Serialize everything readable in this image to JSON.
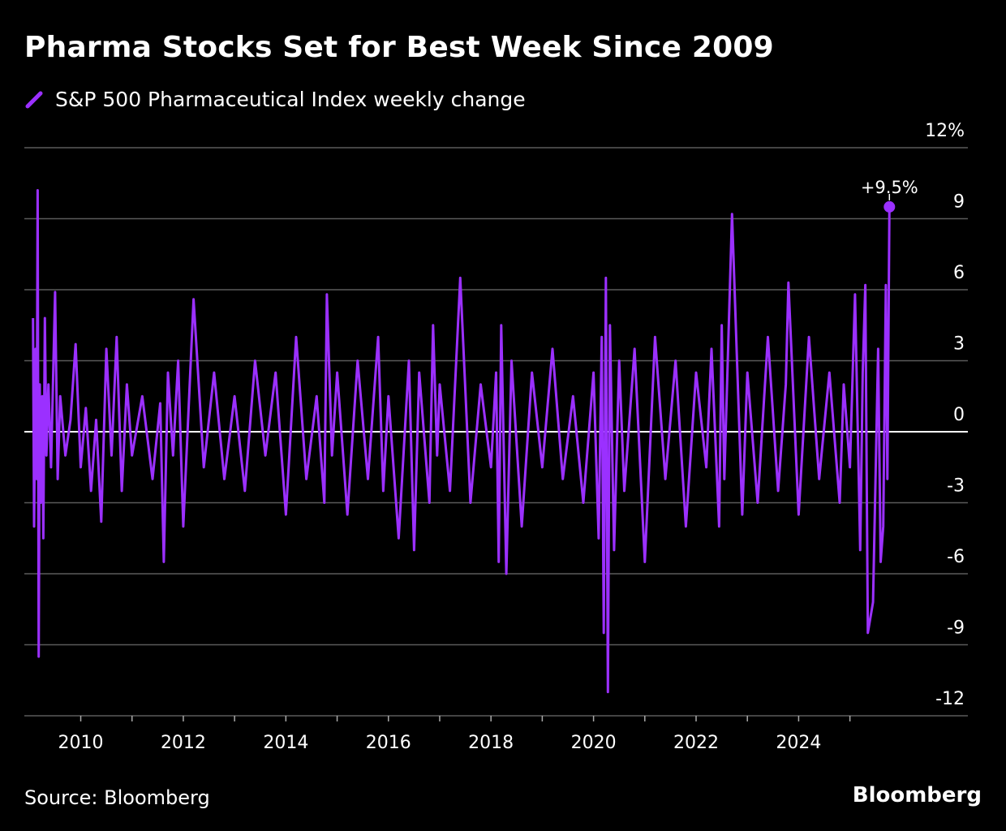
{
  "title": "Pharma Stocks Set for Best Week Since 2009",
  "legend_label": "S&P 500 Pharmaceutical Index weekly change",
  "source": "Source: Bloomberg",
  "brand": "Bloomberg",
  "colors": {
    "series": "#9B30FF",
    "grid": "#5a5a5a",
    "zero": "#ffffff",
    "background": "#000000"
  },
  "legend_icon": "purple-slash-icon",
  "chart_data": {
    "type": "line",
    "title": "Pharma Stocks Set for Best Week Since 2009",
    "xlabel": "",
    "ylabel": "",
    "xlim": [
      2008.9,
      2027.3
    ],
    "ylim": [
      -12,
      12
    ],
    "y_ticks": [
      {
        "value": 12,
        "label": "12%"
      },
      {
        "value": 9,
        "label": "9"
      },
      {
        "value": 6,
        "label": "6"
      },
      {
        "value": 3,
        "label": "3"
      },
      {
        "value": 0,
        "label": "0"
      },
      {
        "value": -3,
        "label": "-3"
      },
      {
        "value": -6,
        "label": "-6"
      },
      {
        "value": -9,
        "label": "-9"
      },
      {
        "value": -12,
        "label": "-12"
      }
    ],
    "x_ticks": [
      {
        "value": 2010,
        "label": "2010"
      },
      {
        "value": 2012,
        "label": "2012"
      },
      {
        "value": 2014,
        "label": "2014"
      },
      {
        "value": 2016,
        "label": "2016"
      },
      {
        "value": 2018,
        "label": "2018"
      },
      {
        "value": 2020,
        "label": "2020"
      },
      {
        "value": 2022,
        "label": "2022"
      },
      {
        "value": 2024,
        "label": "2024"
      }
    ],
    "minor_ticks": [
      2011,
      2013,
      2015,
      2017,
      2019,
      2021,
      2023,
      2025
    ],
    "y_axis_position": "right",
    "grid": true,
    "legend": "top-left",
    "series": [
      {
        "name": "S&P 500 Pharmaceutical Index weekly change",
        "x": [
          2009.07,
          2009.09,
          2009.12,
          2009.14,
          2009.16,
          2009.18,
          2009.2,
          2009.22,
          2009.25,
          2009.27,
          2009.3,
          2009.33,
          2009.37,
          2009.42,
          2009.5,
          2009.55,
          2009.6,
          2009.7,
          2009.8,
          2009.9,
          2010.0,
          2010.1,
          2010.2,
          2010.3,
          2010.4,
          2010.5,
          2010.6,
          2010.7,
          2010.8,
          2010.9,
          2011.0,
          2011.2,
          2011.4,
          2011.55,
          2011.62,
          2011.7,
          2011.8,
          2011.9,
          2012.0,
          2012.2,
          2012.4,
          2012.6,
          2012.8,
          2013.0,
          2013.2,
          2013.4,
          2013.6,
          2013.8,
          2014.0,
          2014.2,
          2014.4,
          2014.6,
          2014.75,
          2014.8,
          2014.9,
          2015.0,
          2015.2,
          2015.4,
          2015.6,
          2015.8,
          2015.9,
          2016.0,
          2016.2,
          2016.4,
          2016.5,
          2016.6,
          2016.8,
          2016.87,
          2016.95,
          2017.0,
          2017.2,
          2017.4,
          2017.6,
          2017.8,
          2018.0,
          2018.1,
          2018.15,
          2018.2,
          2018.3,
          2018.4,
          2018.6,
          2018.8,
          2019.0,
          2019.2,
          2019.4,
          2019.6,
          2019.8,
          2020.0,
          2020.1,
          2020.16,
          2020.2,
          2020.24,
          2020.28,
          2020.32,
          2020.4,
          2020.5,
          2020.6,
          2020.8,
          2021.0,
          2021.2,
          2021.4,
          2021.6,
          2021.8,
          2022.0,
          2022.2,
          2022.3,
          2022.45,
          2022.5,
          2022.55,
          2022.7,
          2022.9,
          2023.0,
          2023.2,
          2023.4,
          2023.6,
          2023.75,
          2023.8,
          2024.0,
          2024.2,
          2024.4,
          2024.6,
          2024.8,
          2024.88,
          2025.0,
          2025.1,
          2025.2,
          2025.25,
          2025.3,
          2025.35,
          2025.45,
          2025.55,
          2025.6,
          2025.65,
          2025.7,
          2025.73,
          2025.77
        ],
        "values": [
          4.8,
          -4.0,
          3.5,
          -2.0,
          10.2,
          -9.5,
          2.0,
          -3.0,
          1.5,
          -4.5,
          4.8,
          -1.0,
          2.0,
          -1.5,
          5.9,
          -2.0,
          1.5,
          -1.0,
          0.5,
          3.7,
          -1.5,
          1.0,
          -2.5,
          0.5,
          -3.8,
          3.5,
          -1.0,
          4.0,
          -2.5,
          2.0,
          -1.0,
          1.5,
          -2.0,
          1.2,
          -5.5,
          2.5,
          -1.0,
          3.0,
          -4.0,
          5.6,
          -1.5,
          2.5,
          -2.0,
          1.5,
          -2.5,
          3.0,
          -1.0,
          2.5,
          -3.5,
          4.0,
          -2.0,
          1.5,
          -3.0,
          5.8,
          -1.0,
          2.5,
          -3.5,
          3.0,
          -2.0,
          4.0,
          -2.5,
          1.5,
          -4.5,
          3.0,
          -5.0,
          2.5,
          -3.0,
          4.5,
          -1.0,
          2.0,
          -2.5,
          6.5,
          -3.0,
          2.0,
          -1.5,
          2.5,
          -5.5,
          4.5,
          -6.0,
          3.0,
          -4.0,
          2.5,
          -1.5,
          3.5,
          -2.0,
          1.5,
          -3.0,
          2.5,
          -4.5,
          4.0,
          -8.5,
          6.5,
          -11.0,
          4.5,
          -5.0,
          3.0,
          -2.5,
          3.5,
          -5.5,
          4.0,
          -2.0,
          3.0,
          -4.0,
          2.5,
          -1.5,
          3.5,
          -4.0,
          4.5,
          -2.0,
          9.2,
          -3.5,
          2.5,
          -3.0,
          4.0,
          -2.5,
          2.0,
          6.3,
          -3.5,
          4.0,
          -2.0,
          2.5,
          -3.0,
          2.0,
          -1.5,
          5.8,
          -5.0,
          2.5,
          6.2,
          -8.5,
          -7.2,
          3.5,
          -5.5,
          -4.0,
          6.2,
          -2.0,
          9.5
        ]
      }
    ],
    "annotations": [
      {
        "text": "+9.5%",
        "x": 2025.77,
        "y": 9.5
      }
    ]
  }
}
